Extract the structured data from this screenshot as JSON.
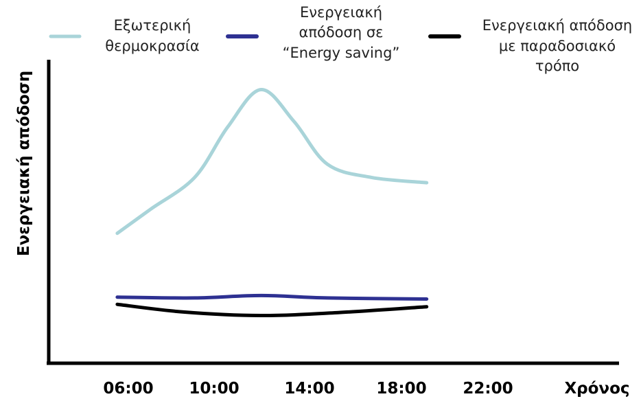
{
  "chart_data": {
    "type": "line",
    "title": "",
    "xlabel": "Χρόνος",
    "ylabel": "Ενεργειακή απόδοση",
    "categories": [
      "06:00",
      "10:00",
      "14:00",
      "18:00",
      "22:00"
    ],
    "series": [
      {
        "name_lines": [
          "Εξωτερική",
          "θερμοκρασία"
        ],
        "color": "#a9d4d9",
        "x": [
          5.5,
          7,
          9,
          10.5,
          12,
          13.5,
          15,
          17,
          19.5
        ],
        "y": [
          30,
          39,
          51,
          70,
          84,
          72,
          56,
          51,
          49
        ]
      },
      {
        "name_lines": [
          "Ενεργειακή",
          "απόδοση σε",
          "“Energy saving”"
        ],
        "color": "#2e3192",
        "x": [
          5.5,
          9,
          12,
          15,
          19.5
        ],
        "y": [
          6,
          5.7,
          6.6,
          5.7,
          5.3
        ]
      },
      {
        "name_lines": [
          "Ενεργειακή απόδοση",
          "με  παραδοσιακό",
          "τρόπο"
        ],
        "color": "#000000",
        "x": [
          5.5,
          8.5,
          12,
          15.5,
          19.5
        ],
        "y": [
          3.3,
          0.4,
          -0.9,
          0.2,
          2.4
        ]
      }
    ],
    "legend_position": "top",
    "grid": false,
    "yaxis_ticks": false
  }
}
